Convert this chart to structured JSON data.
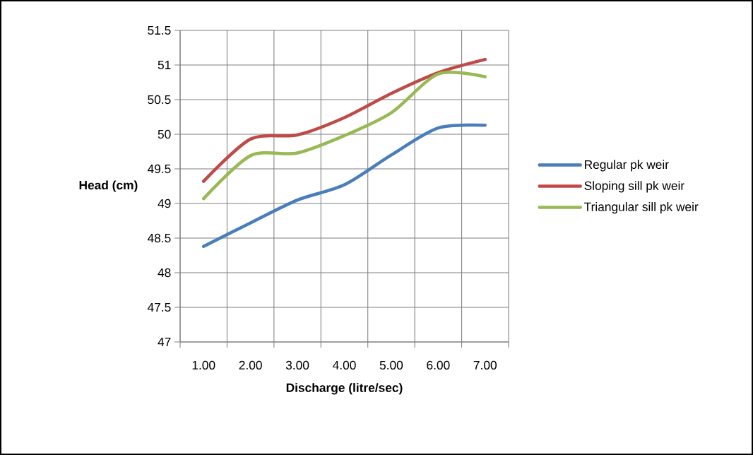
{
  "chart_data": {
    "type": "line",
    "xlabel": "Discharge (litre/sec)",
    "ylabel": "Head (cm)",
    "categories": [
      "1.00",
      "2.00",
      "3.00",
      "4.00",
      "5.00",
      "6.00",
      "7.00"
    ],
    "series": [
      {
        "name": "Regular pk weir",
        "color": "#4a7ebb",
        "values": [
          48.38,
          48.72,
          49.05,
          49.27,
          49.7,
          50.09,
          50.13
        ]
      },
      {
        "name": "Sloping sill pk weir",
        "color": "#be4b48",
        "values": [
          49.32,
          49.93,
          49.99,
          50.24,
          50.59,
          50.89,
          51.08
        ]
      },
      {
        "name": "Triangular sill pk weir",
        "color": "#98b954",
        "values": [
          49.07,
          49.69,
          49.73,
          49.98,
          50.31,
          50.87,
          50.83
        ]
      }
    ],
    "ylim": [
      47,
      51.5
    ],
    "yticks": [
      47,
      47.5,
      48,
      48.5,
      49,
      49.5,
      50,
      50.5,
      51,
      51.5
    ],
    "grid": true,
    "legend": "right",
    "marker": "none",
    "line_style": "solid"
  }
}
